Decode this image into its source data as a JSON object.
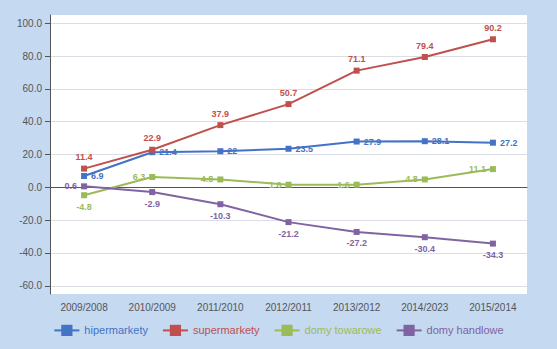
{
  "chart_data": {
    "type": "line",
    "categories": [
      "2009/2008",
      "2010/2009",
      "2011/2010",
      "2012/2011",
      "2013/2012",
      "2014/2023",
      "2015/2014"
    ],
    "series": [
      {
        "name": "hipermarkety",
        "color": "#4472C4",
        "marker": "square",
        "values": [
          6.9,
          21.4,
          22.0,
          23.5,
          27.9,
          28.1,
          27.2
        ]
      },
      {
        "name": "supermarkety",
        "color": "#C0504D",
        "marker": "square",
        "values": [
          11.4,
          22.9,
          37.9,
          50.7,
          71.1,
          79.4,
          90.2
        ]
      },
      {
        "name": "domy towarowe",
        "color": "#9BBB59",
        "marker": "square",
        "values": [
          -4.8,
          6.3,
          4.8,
          1.6,
          1.6,
          4.8,
          11.1
        ]
      },
      {
        "name": "domy handlowe",
        "color": "#8064A2",
        "marker": "square",
        "values": [
          0.6,
          -2.9,
          -10.3,
          -21.2,
          -27.2,
          -30.4,
          -34.3
        ]
      }
    ],
    "ylim": [
      -65,
      105
    ],
    "yticks": [
      {
        "value": -60,
        "label": "-60.0"
      },
      {
        "value": -40,
        "label": "-40.0"
      },
      {
        "value": -20,
        "label": "-20.0"
      },
      {
        "value": 0,
        "label": "0.0"
      },
      {
        "value": 20,
        "label": "20.0"
      },
      {
        "value": 40,
        "label": "40.0"
      },
      {
        "value": 60,
        "label": "60.0"
      },
      {
        "value": 80,
        "label": "80.0"
      },
      {
        "value": 100,
        "label": "100.0"
      }
    ],
    "grid": true,
    "legend": "bottom",
    "data_labels": true
  }
}
